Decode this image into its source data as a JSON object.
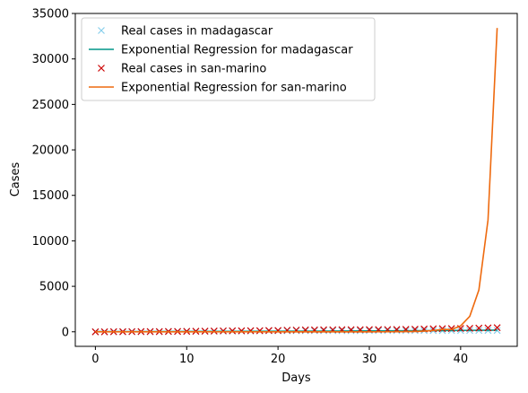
{
  "chart_data": {
    "type": "line",
    "title": "",
    "xlabel": "Days",
    "ylabel": "Cases",
    "xlim": [
      -2.2,
      46.2
    ],
    "ylim": [
      -1600,
      35000
    ],
    "xticks": [
      0,
      10,
      20,
      30,
      40
    ],
    "yticks": [
      0,
      5000,
      10000,
      15000,
      20000,
      25000,
      30000,
      35000
    ],
    "legend_position": "top-left",
    "grid": false,
    "series": [
      {
        "name": "Real cases in madagascar",
        "style": "markers-x",
        "color": "#87ceeb",
        "x": [
          0,
          1,
          2,
          3,
          4,
          5,
          6,
          7,
          8,
          9,
          10,
          11,
          12,
          13,
          14,
          15,
          16,
          17,
          18,
          19,
          20,
          21,
          22,
          23,
          24,
          25,
          26,
          27,
          28,
          29,
          30,
          31,
          32,
          33,
          34,
          35,
          36,
          37,
          38,
          39,
          40,
          41,
          42,
          43,
          44
        ],
        "y": [
          3,
          3,
          12,
          12,
          17,
          19,
          23,
          26,
          43,
          53,
          57,
          57,
          59,
          70,
          72,
          82,
          88,
          93,
          102,
          106,
          110,
          111,
          117,
          119,
          121,
          121,
          121,
          122,
          123,
          124,
          128,
          128,
          128,
          128,
          128,
          128,
          129,
          131,
          135,
          138,
          138,
          139,
          140,
          141,
          141
        ]
      },
      {
        "name": "Exponential Regression for madagascar",
        "style": "line",
        "color": "#009688",
        "x": [
          0,
          5,
          10,
          15,
          20,
          25,
          30,
          35,
          40,
          44
        ],
        "y": [
          20,
          26,
          34,
          44,
          57,
          72,
          92,
          118,
          150,
          180
        ]
      },
      {
        "name": "Real cases in san-marino",
        "style": "markers-x",
        "color": "#cc0000",
        "x": [
          0,
          1,
          2,
          3,
          4,
          5,
          6,
          7,
          8,
          9,
          10,
          11,
          12,
          13,
          14,
          15,
          16,
          17,
          18,
          19,
          20,
          21,
          22,
          23,
          24,
          25,
          26,
          27,
          28,
          29,
          30,
          31,
          32,
          33,
          34,
          35,
          36,
          37,
          38,
          39,
          40,
          41,
          42,
          43,
          44
        ],
        "y": [
          1,
          1,
          8,
          10,
          16,
          21,
          21,
          23,
          36,
          36,
          51,
          62,
          69,
          80,
          101,
          109,
          109,
          119,
          119,
          144,
          144,
          175,
          187,
          208,
          208,
          223,
          224,
          230,
          236,
          236,
          245,
          245,
          250,
          256,
          266,
          279,
          308,
          333,
          344,
          356,
          366,
          380,
          400,
          430,
          455
        ]
      },
      {
        "name": "Exponential Regression for san-marino",
        "style": "line",
        "color": "#ee6a0f",
        "x": [
          0,
          1,
          2,
          3,
          4,
          5,
          6,
          7,
          8,
          9,
          10,
          11,
          12,
          13,
          14,
          15,
          16,
          17,
          18,
          19,
          20,
          21,
          22,
          23,
          24,
          25,
          26,
          27,
          28,
          29,
          30,
          31,
          32,
          33,
          34,
          35,
          36,
          37,
          38,
          39,
          40,
          41,
          42,
          43,
          44
        ],
        "y": [
          0,
          0,
          0,
          0,
          0,
          0,
          0,
          0,
          0,
          0,
          0,
          0,
          0,
          0,
          0,
          0,
          0,
          0,
          0,
          0,
          0,
          0,
          0,
          0,
          0,
          0,
          0,
          0,
          0,
          0,
          1,
          2,
          4,
          9,
          19,
          37,
          72,
          140,
          270,
          250,
          650,
          1700,
          4600,
          12300,
          33400
        ]
      }
    ]
  }
}
